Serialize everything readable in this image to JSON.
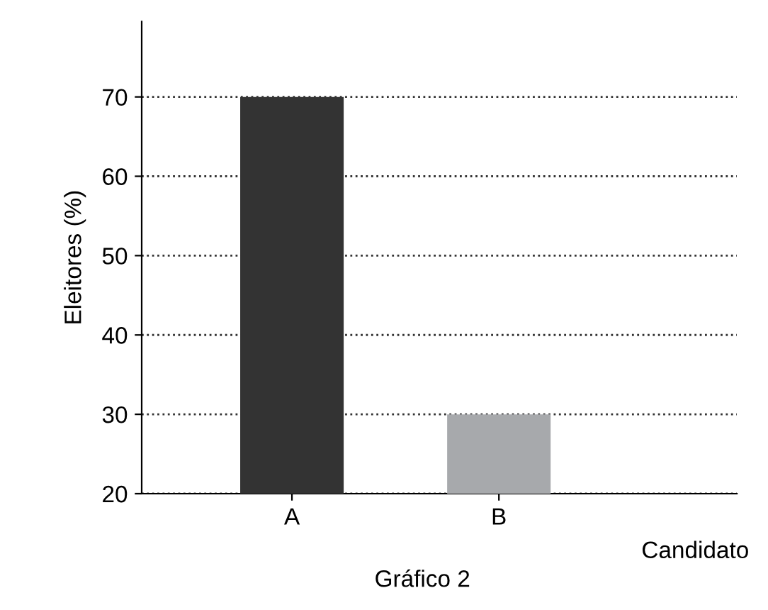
{
  "chart_data": {
    "type": "bar",
    "categories": [
      "A",
      "B"
    ],
    "values": [
      70,
      30
    ],
    "colors": [
      "#333333",
      "#a7a9ac"
    ],
    "ylabel": "Eleitores (%)",
    "xlabel": "Candidato",
    "annotations": [
      "Gráfico 2"
    ],
    "ylim": [
      20,
      79.5
    ],
    "yticks": [
      20,
      30,
      40,
      50,
      60,
      70
    ],
    "grid": "y",
    "line_style": "dotted"
  }
}
